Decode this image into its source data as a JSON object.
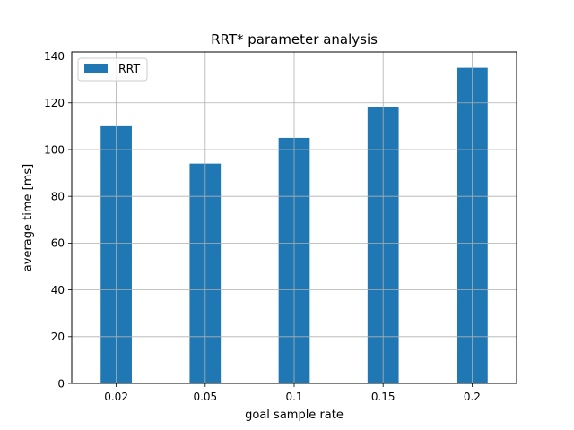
{
  "chart_data": {
    "type": "bar",
    "title": "RRT* parameter analysis",
    "xlabel": "goal sample rate",
    "ylabel": "average time [ms]",
    "categories": [
      "0.02",
      "0.05",
      "0.1",
      "0.15",
      "0.2"
    ],
    "series": [
      {
        "name": "RRT",
        "values": [
          110,
          94,
          105,
          118,
          135
        ],
        "color": "#1f77b4"
      }
    ],
    "ylim": [
      0,
      141.75
    ],
    "yticks": [
      0,
      20,
      40,
      60,
      80,
      100,
      120,
      140
    ],
    "grid": true,
    "legend": "top-left"
  }
}
